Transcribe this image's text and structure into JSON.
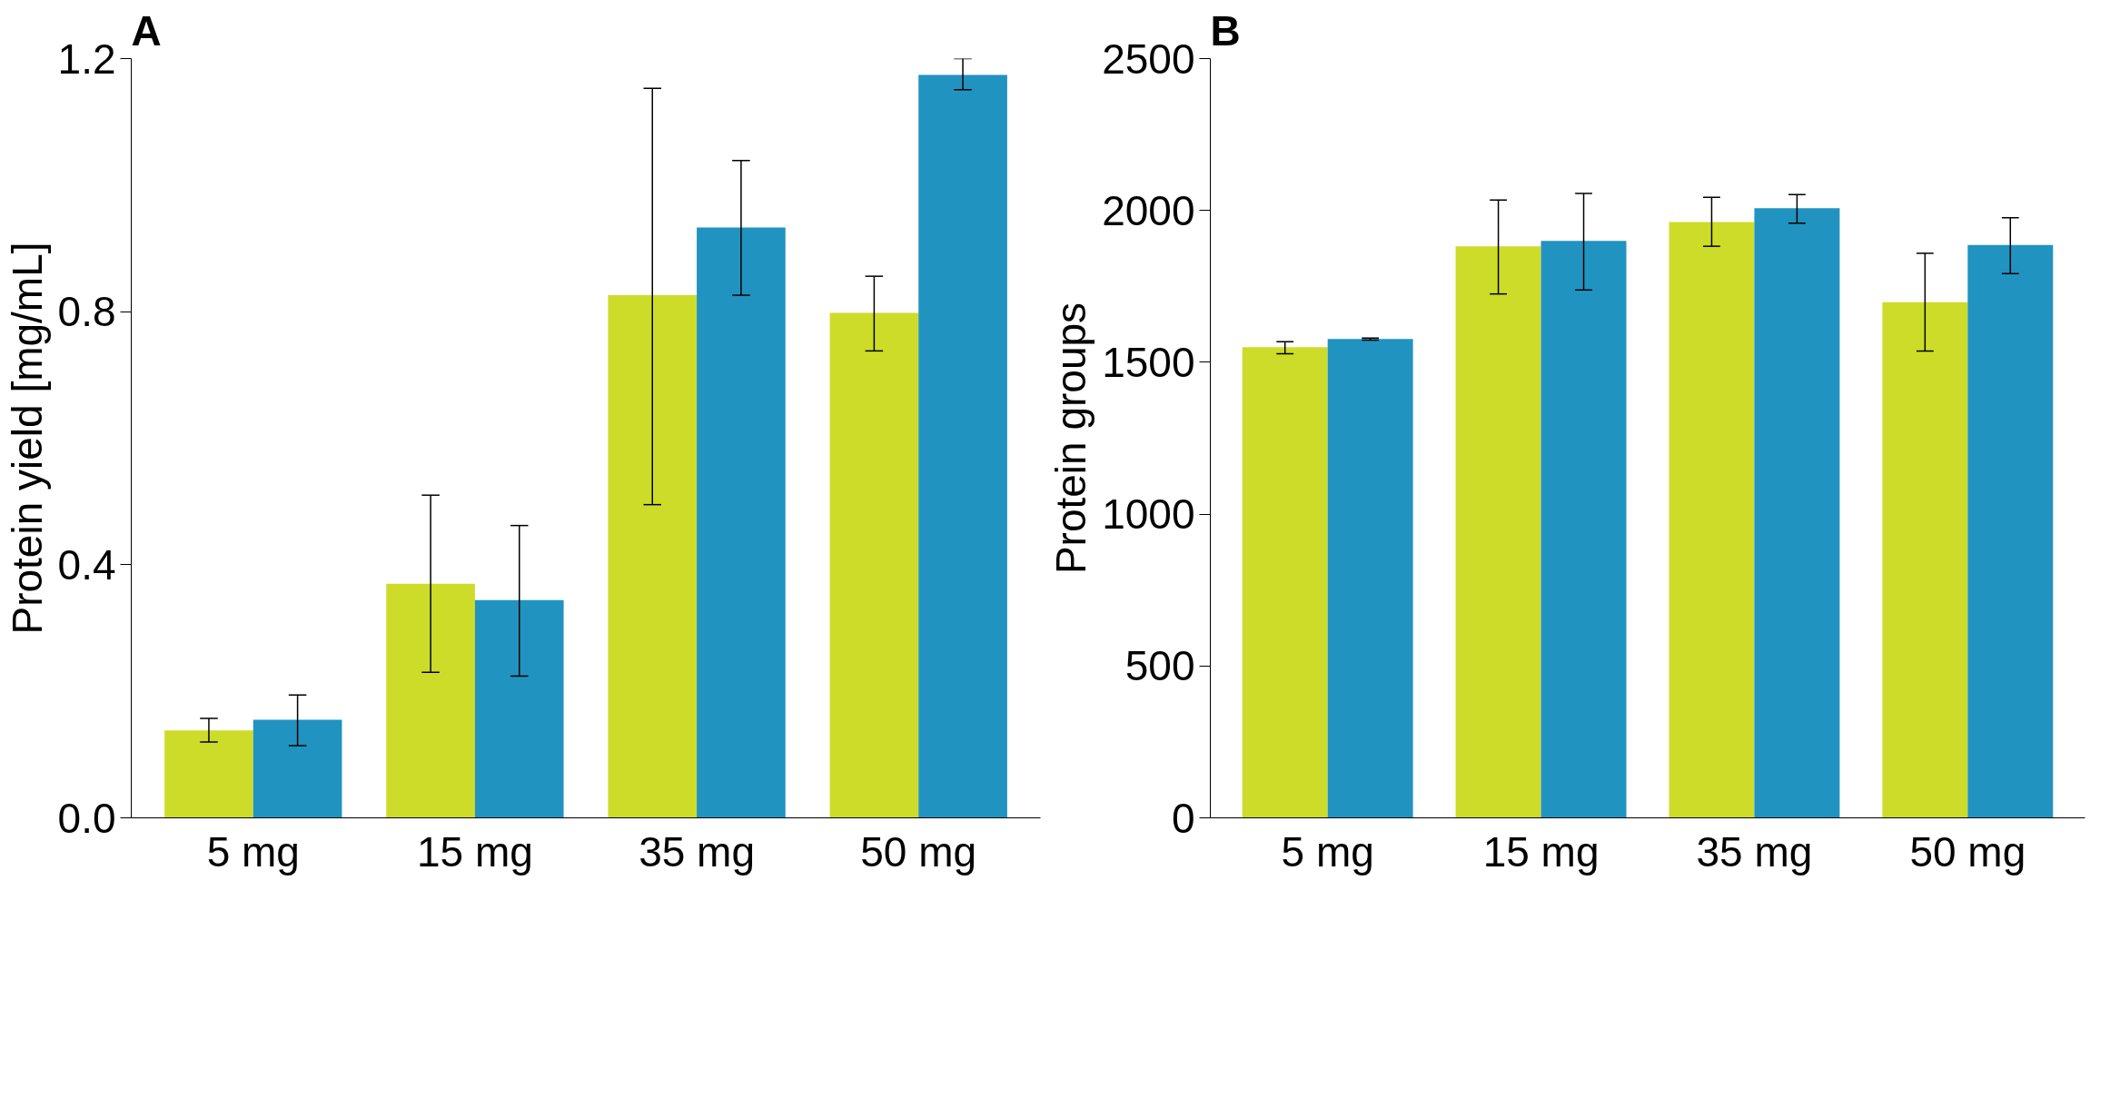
{
  "chart_data": [
    {
      "type": "bar",
      "title": "A",
      "ylabel": "Protein yield [mg/mL]",
      "categories": [
        "5 mg",
        "15 mg",
        "35 mg",
        "50 mg"
      ],
      "series": [
        {
          "color": "#cddc29",
          "values": [
            0.138,
            0.37,
            0.826,
            0.798
          ],
          "errors": [
            [
              0.12,
              0.157
            ],
            [
              0.23,
              0.51
            ],
            [
              0.495,
              1.153
            ],
            [
              0.738,
              0.856
            ]
          ]
        },
        {
          "color": "#2193c0",
          "values": [
            0.155,
            0.344,
            0.933,
            1.174
          ],
          "errors": [
            [
              0.114,
              0.194
            ],
            [
              0.224,
              0.462
            ],
            [
              0.826,
              1.039
            ],
            [
              1.151,
              1.2
            ]
          ]
        }
      ],
      "ylim": [
        0,
        1.2
      ],
      "yticks": [
        {
          "value": 0,
          "label": "0.0"
        },
        0.4,
        0.8,
        1.2
      ]
    },
    {
      "type": "bar",
      "title": "B",
      "ylabel": "Protein groups",
      "categories": [
        "5 mg",
        "15 mg",
        "35 mg",
        "50 mg"
      ],
      "series": [
        {
          "color": "#cddc29",
          "values": [
            1550,
            1882,
            1962,
            1698
          ],
          "errors": [
            [
              1528,
              1568
            ],
            [
              1725,
              2034
            ],
            [
              1882,
              2043
            ],
            [
              1537,
              1859
            ]
          ]
        },
        {
          "color": "#2193c0",
          "values": [
            1577,
            1900,
            2007,
            1886
          ],
          "errors": [
            [
              1573,
              1580
            ],
            [
              1738,
              2056
            ],
            [
              1958,
              2052
            ],
            [
              1792,
              1976
            ]
          ]
        }
      ],
      "ylim": [
        0,
        2500
      ],
      "yticks": [
        0,
        500,
        1000,
        1500,
        2000,
        2500
      ]
    }
  ]
}
